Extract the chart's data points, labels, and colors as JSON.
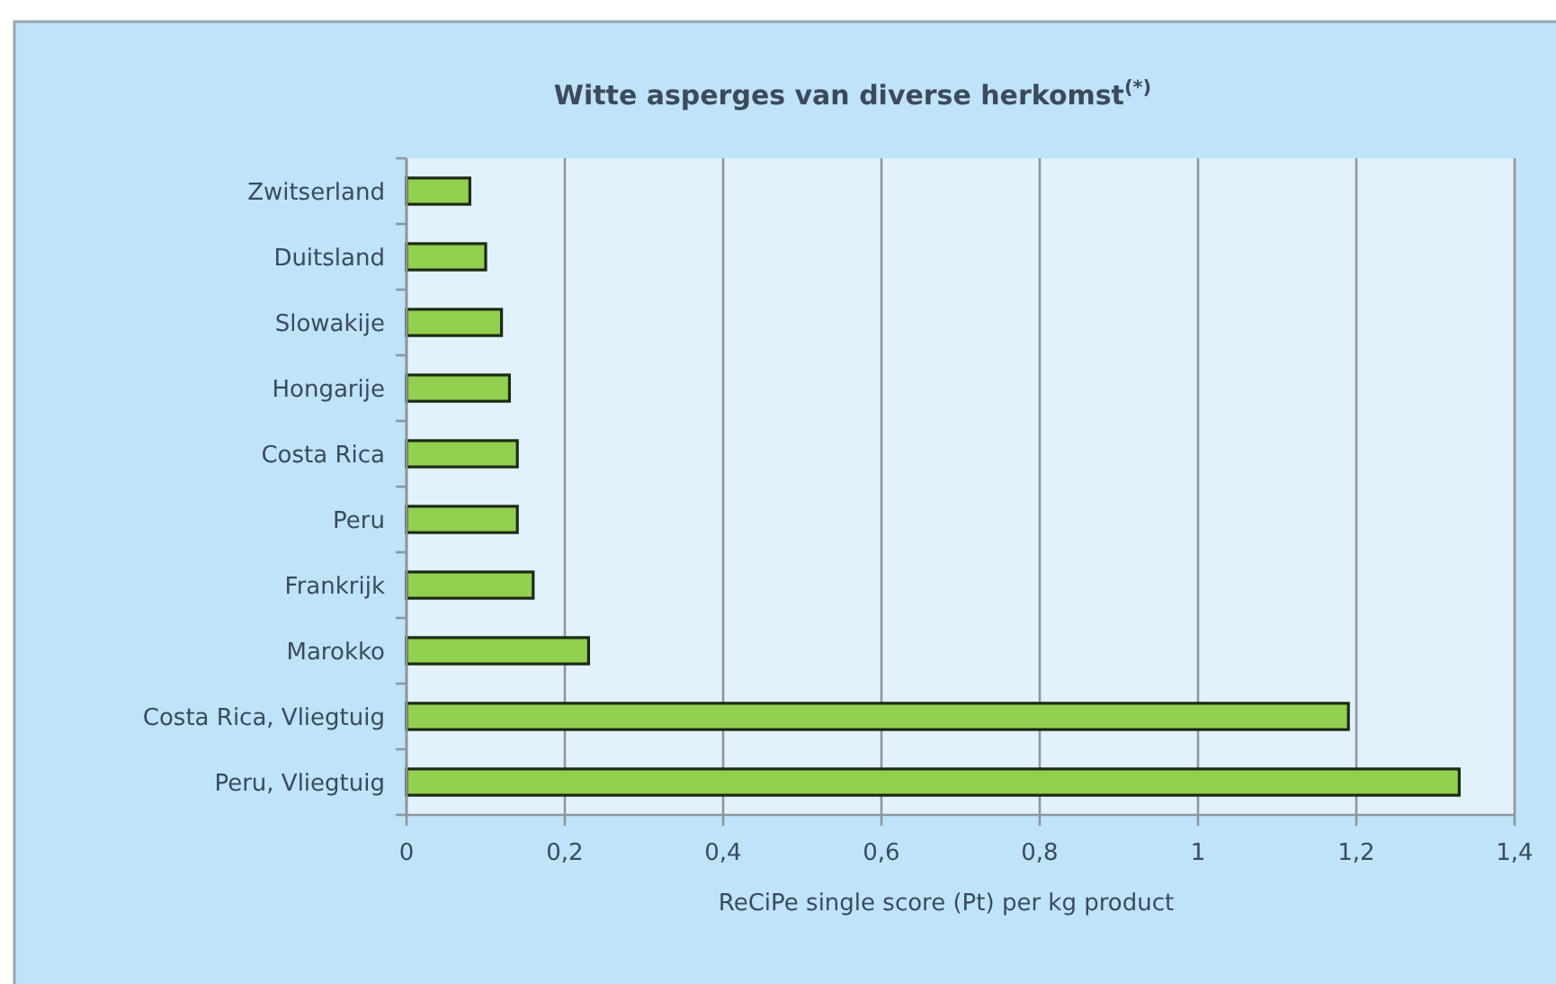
{
  "chart_data": {
    "type": "bar",
    "orientation": "horizontal",
    "title": "Witte asperges van diverse herkomst$^{(*)}$",
    "xlabel": "ReCiPe single score (Pt) per kg product",
    "categories": [
      "Zwitserland",
      "Duitsland",
      "Slowakije",
      "Hongarije",
      "Costa Rica",
      "Peru",
      "Frankrijk",
      "Marokko",
      "Costa Rica, Vliegtuig",
      "Peru, Vliegtuig"
    ],
    "values": [
      0.08,
      0.1,
      0.12,
      0.13,
      0.14,
      0.14,
      0.16,
      0.23,
      1.19,
      1.33
    ],
    "color": "#92d050",
    "xlim": [
      0,
      1.4
    ],
    "xticks": [
      0,
      {
        "value": 0.2,
        "label": "0,2"
      },
      {
        "value": 0.4,
        "label": "0,4"
      },
      {
        "value": 0.6,
        "label": "0,6"
      },
      {
        "value": 0.8,
        "label": "0,8"
      },
      1,
      {
        "value": 1.2,
        "label": "1,2"
      },
      {
        "value": 1.4,
        "label": "1,4"
      }
    ],
    "grid": "x"
  }
}
